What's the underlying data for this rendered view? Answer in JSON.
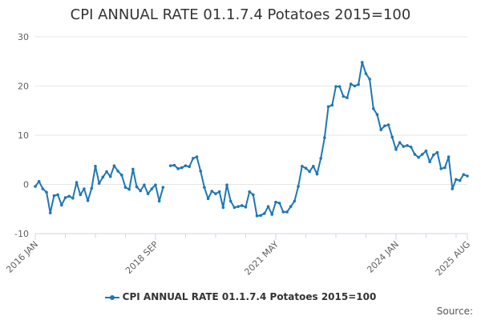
{
  "chart_data": {
    "type": "line",
    "title": "CPI ANNUAL RATE 01.1.7.4 Potatoes 2015=100",
    "xlabel": "",
    "ylabel": "",
    "ylim": [
      -10,
      30
    ],
    "yticks": [
      -10,
      0,
      10,
      20,
      30
    ],
    "xticks": [
      {
        "label": "2016 JAN",
        "index": 0
      },
      {
        "label": "2018 SEP",
        "index": 32
      },
      {
        "label": "2021 MAY",
        "index": 64
      },
      {
        "label": "2024 JAN",
        "index": 96
      },
      {
        "label": "2025 AUG",
        "index": 115
      }
    ],
    "grid": true,
    "legend": "bottom-center",
    "color": "#1f77b4",
    "series": [
      {
        "name": "CPI ANNUAL RATE 01.1.7.4 Potatoes 2015=100",
        "values": [
          -0.4,
          0.6,
          -0.9,
          -1.6,
          -5.8,
          -2.3,
          -2.1,
          -4.2,
          -2.7,
          -2.4,
          -2.8,
          0.4,
          -2.1,
          -0.9,
          -3.3,
          -0.8,
          3.7,
          0.2,
          1.5,
          2.6,
          1.6,
          3.8,
          2.7,
          1.9,
          -0.6,
          -1.0,
          3.1,
          -0.5,
          -1.3,
          -0.1,
          -1.9,
          -0.9,
          -0.1,
          -3.4,
          -0.6,
          null,
          3.8,
          3.9,
          3.2,
          3.4,
          3.8,
          3.6,
          5.3,
          5.6,
          2.7,
          -0.6,
          -2.9,
          -1.4,
          -1.9,
          -1.5,
          -4.7,
          -0.1,
          -3.4,
          -4.7,
          -4.5,
          -4.3,
          -4.6,
          -1.5,
          -2.1,
          -6.4,
          -6.3,
          -5.9,
          -4.5,
          -6.1,
          -3.6,
          -3.8,
          -5.6,
          -5.6,
          -4.5,
          -3.4,
          -0.4,
          3.7,
          3.3,
          2.6,
          3.7,
          2.1,
          5.3,
          9.5,
          15.8,
          16.1,
          19.9,
          19.9,
          17.9,
          17.6,
          20.4,
          20.0,
          20.3,
          24.8,
          22.5,
          21.4,
          15.4,
          14.2,
          11.1,
          11.9,
          12.1,
          9.6,
          7.1,
          8.5,
          7.7,
          7.9,
          7.6,
          6.1,
          5.5,
          6.1,
          6.8,
          4.6,
          6.0,
          6.5,
          3.2,
          3.4,
          5.6,
          -0.9,
          1.0,
          0.8,
          2.0,
          1.7
        ]
      }
    ]
  },
  "legend_label": "CPI ANNUAL RATE 01.1.7.4 Potatoes 2015=100",
  "source_label": "Source:"
}
